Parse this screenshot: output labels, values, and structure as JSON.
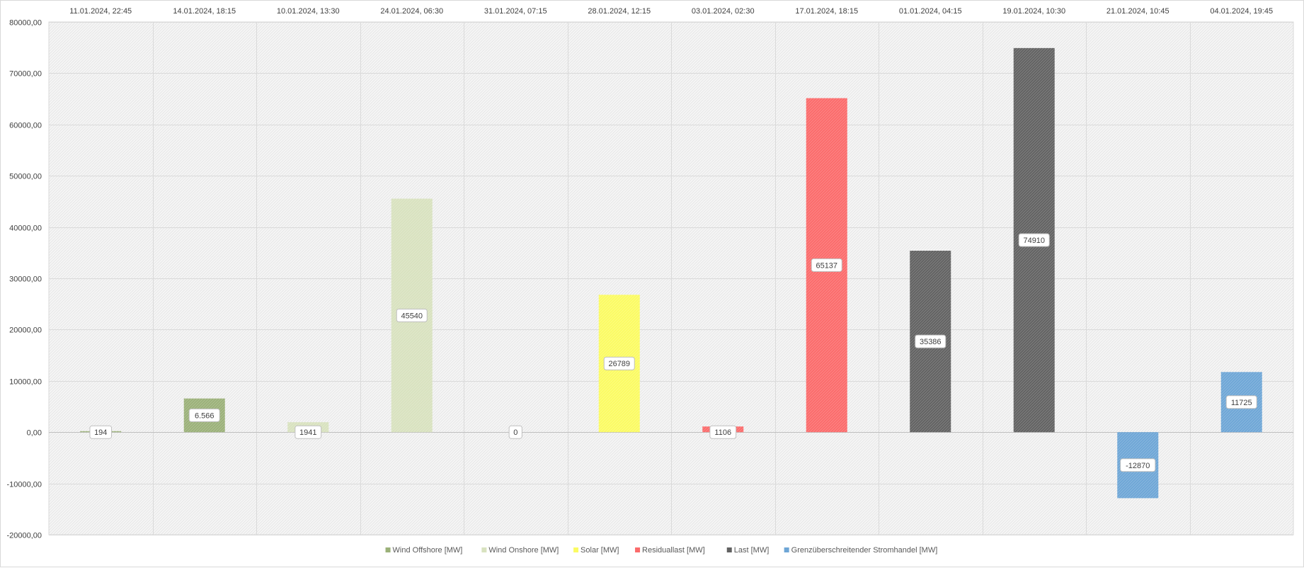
{
  "chart_data": {
    "type": "bar",
    "title": "",
    "xlabel": "",
    "ylabel": "",
    "ylim": [
      -20000,
      80000
    ],
    "y_tick_step": 10000,
    "y_tick_labels": [
      "80000,00",
      "70000,00",
      "60000,00",
      "50000,00",
      "40000,00",
      "30000,00",
      "20000,00",
      "10000,00",
      "0,00",
      "-10000,00",
      "-20000,00"
    ],
    "grid": true,
    "category_axis_position": "top",
    "legend_position": "bottom",
    "categories": [
      "11.01.2024, 22:45",
      "14.01.2024, 18:15",
      "10.01.2024, 13:30",
      "24.01.2024, 06:30",
      "31.01.2024, 07:15",
      "28.01.2024, 12:15",
      "03.01.2024, 02:30",
      "17.01.2024, 18:15",
      "01.01.2024, 04:15",
      "19.01.2024, 10:30",
      "21.01.2024, 10:45",
      "04.01.2024, 19:45"
    ],
    "bars": [
      {
        "value": 194,
        "label": "194",
        "series": "Wind Offshore [MW]"
      },
      {
        "value": 6566,
        "label": "6.566",
        "series": "Wind Offshore [MW]"
      },
      {
        "value": 1941,
        "label": "1941",
        "series": "Wind Onshore [MW]"
      },
      {
        "value": 45540,
        "label": "45540",
        "series": "Wind Onshore [MW]"
      },
      {
        "value": 0,
        "label": "0",
        "series": "Solar [MW]"
      },
      {
        "value": 26789,
        "label": "26789",
        "series": "Solar [MW]"
      },
      {
        "value": 1106,
        "label": "1106",
        "series": "Residuallast [MW]"
      },
      {
        "value": 65137,
        "label": "65137",
        "series": "Residuallast [MW]"
      },
      {
        "value": 35386,
        "label": "35386",
        "series": "Last [MW]"
      },
      {
        "value": 74910,
        "label": "74910",
        "series": "Last [MW]"
      },
      {
        "value": -12870,
        "label": "-12870",
        "series": "Grenzüberschreitender Stromhandel [MW]"
      },
      {
        "value": 11725,
        "label": "11725",
        "series": "Grenzüberschreitender Stromhandel [MW]"
      }
    ],
    "series": [
      {
        "name": "Wind Offshore [MW]",
        "color": "#9bb179"
      },
      {
        "name": "Wind Onshore [MW]",
        "color": "#d8e2bf"
      },
      {
        "name": "Solar [MW]",
        "color": "#fbfb63"
      },
      {
        "name": "Residuallast [MW]",
        "color": "#fb6b6b"
      },
      {
        "name": "Last [MW]",
        "color": "#626262"
      },
      {
        "name": "Grenzüberschreitender Stromhandel [MW]",
        "color": "#6ea6d6"
      }
    ]
  }
}
